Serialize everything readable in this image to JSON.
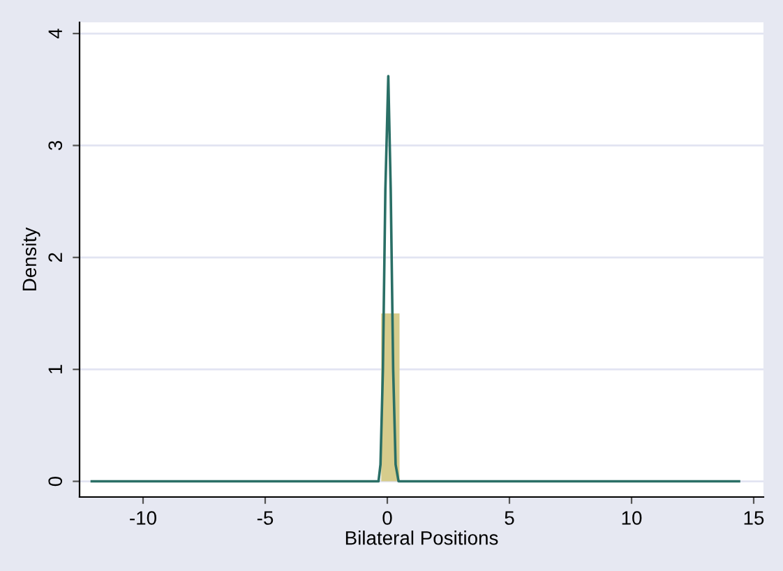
{
  "chart_data": {
    "type": "histogram",
    "xlabel": "Bilateral Positions",
    "ylabel": "Density",
    "bins": [
      -0.25,
      0.5
    ],
    "values": [
      1.5
    ],
    "color": "#d6cc8c",
    "series": [
      {
        "type": "line",
        "color": "#2a6f66",
        "x": [
          -12.1,
          -0.36,
          -0.28,
          -0.18,
          -0.08,
          0.04,
          0.14,
          0.24,
          0.34,
          0.46,
          14.4
        ],
        "values": [
          0,
          0,
          0.15,
          1.0,
          2.6,
          3.62,
          2.6,
          1.0,
          0.15,
          0,
          0
        ]
      }
    ],
    "xlim": [
      -12.6,
      15.4
    ],
    "ylim": [
      -0.14,
      4.1
    ],
    "xticks": [
      -10,
      -5,
      0,
      5,
      10,
      15
    ],
    "yticks": [
      0,
      1,
      2,
      3,
      4
    ],
    "grid": "y",
    "legend": false
  }
}
